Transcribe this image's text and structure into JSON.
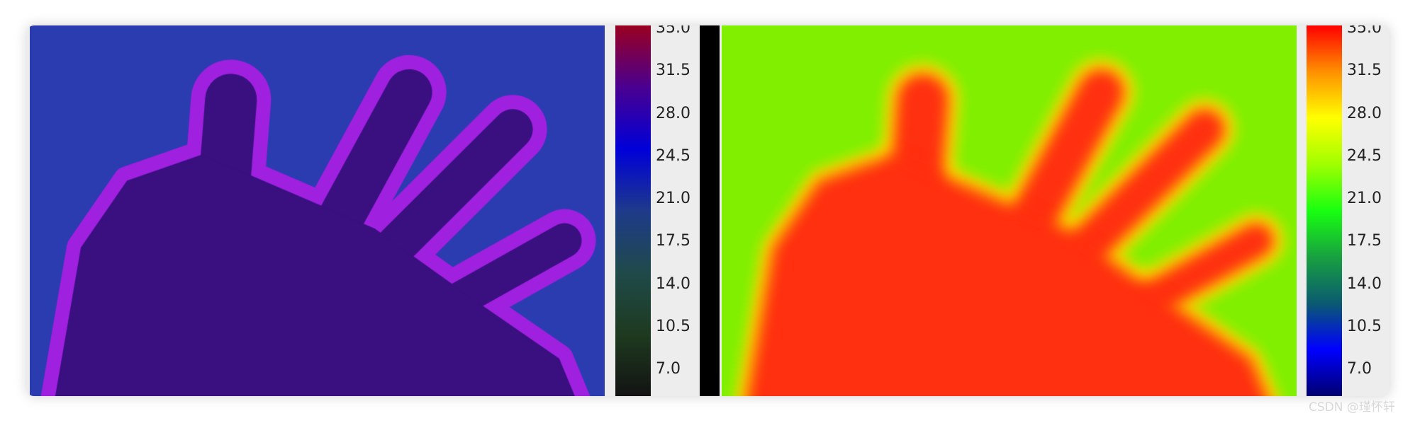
{
  "chart_data": [
    {
      "type": "heatmap",
      "colormap": "dark-green-blue-purple-red",
      "colormap_stops": [
        "#131313",
        "#1e3a1f",
        "#1f4a4a",
        "#1e3a8a",
        "#0000d8",
        "#4a0090",
        "#9a0020"
      ],
      "hand_color": "#3a1080",
      "edge_color": "#a020e0",
      "background_color": "#2a3cb0",
      "colorbar": {
        "min": 7.0,
        "max": 35.0,
        "ticks": [
          "35.0",
          "31.5",
          "28.0",
          "24.5",
          "21.0",
          "17.5",
          "14.0",
          "10.5",
          "7.0"
        ]
      }
    },
    {
      "type": "heatmap",
      "colormap": "jet-like",
      "colormap_stops": [
        "#000070",
        "#0000ff",
        "#0a5a70",
        "#18a040",
        "#18ff10",
        "#a0ff00",
        "#ffff00",
        "#ff9000",
        "#ff0000"
      ],
      "hand_color": "#ff3010",
      "edge_color": "#ffe000",
      "background_color": "#80f000",
      "colorbar": {
        "min": 7.0,
        "max": 35.0,
        "ticks": [
          "35.0",
          "31.5",
          "28.0",
          "24.5",
          "21.0",
          "17.5",
          "14.0",
          "10.5",
          "7.0"
        ]
      }
    }
  ],
  "watermark": "CSDN @瑾怀轩"
}
